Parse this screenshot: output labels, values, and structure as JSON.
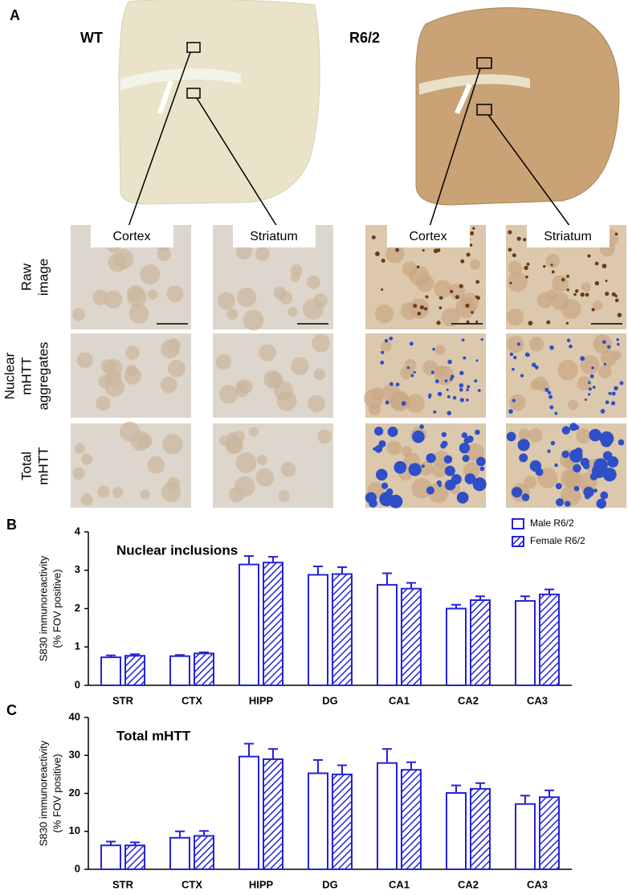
{
  "panel_a": {
    "label": "A",
    "groups": [
      "WT",
      "R6/2"
    ],
    "regions": [
      "Cortex",
      "Striatum"
    ],
    "rows": [
      [
        "Raw",
        "image"
      ],
      [
        "Nuclear",
        "mHTT",
        "aggregates"
      ],
      [
        "Total",
        "mHTT"
      ]
    ]
  },
  "chart_data": [
    {
      "type": "bar",
      "label": "B",
      "title": "Nuclear inclusions",
      "y_label": [
        "S830 immunoreactivity",
        "(% FOV positive)"
      ],
      "categories": [
        "STR",
        "CTX",
        "HIPP",
        "DG",
        "CA1",
        "CA2",
        "CA3"
      ],
      "series": [
        {
          "name": "Male R6/2",
          "color": "#2323d9",
          "hatch": false,
          "values": [
            0.73,
            0.76,
            3.15,
            2.88,
            2.62,
            2.0,
            2.2
          ],
          "error": [
            0.05,
            0.03,
            0.22,
            0.22,
            0.3,
            0.1,
            0.12
          ]
        },
        {
          "name": "Female R6/2",
          "color": "#2323d9",
          "hatch": true,
          "values": [
            0.77,
            0.83,
            3.2,
            2.9,
            2.52,
            2.22,
            2.37
          ],
          "error": [
            0.04,
            0.03,
            0.15,
            0.18,
            0.15,
            0.1,
            0.13
          ]
        }
      ],
      "ylim": [
        0,
        4
      ],
      "yticks": [
        0,
        1,
        2,
        3,
        4
      ],
      "legend": "upper right"
    },
    {
      "type": "bar",
      "label": "C",
      "title": "Total mHTT",
      "y_label": [
        "S830 immunoreactivity",
        "(% FOV positive)"
      ],
      "categories": [
        "STR",
        "CTX",
        "HIPP",
        "DG",
        "CA1",
        "CA2",
        "CA3"
      ],
      "series": [
        {
          "color": "#2323d9",
          "hatch": false,
          "values": [
            6.3,
            8.3,
            29.7,
            25.3,
            28.0,
            20.1,
            17.2
          ],
          "error": [
            1.0,
            1.7,
            3.4,
            3.5,
            3.7,
            2.0,
            2.2
          ]
        },
        {
          "color": "#2323d9",
          "hatch": true,
          "values": [
            6.3,
            8.8,
            29.0,
            25.0,
            26.2,
            21.2,
            19.0
          ],
          "error": [
            0.8,
            1.3,
            2.7,
            2.4,
            2.0,
            1.5,
            1.8
          ]
        }
      ],
      "ylim": [
        0,
        40
      ],
      "yticks": [
        0,
        10,
        20,
        30,
        40
      ]
    }
  ]
}
